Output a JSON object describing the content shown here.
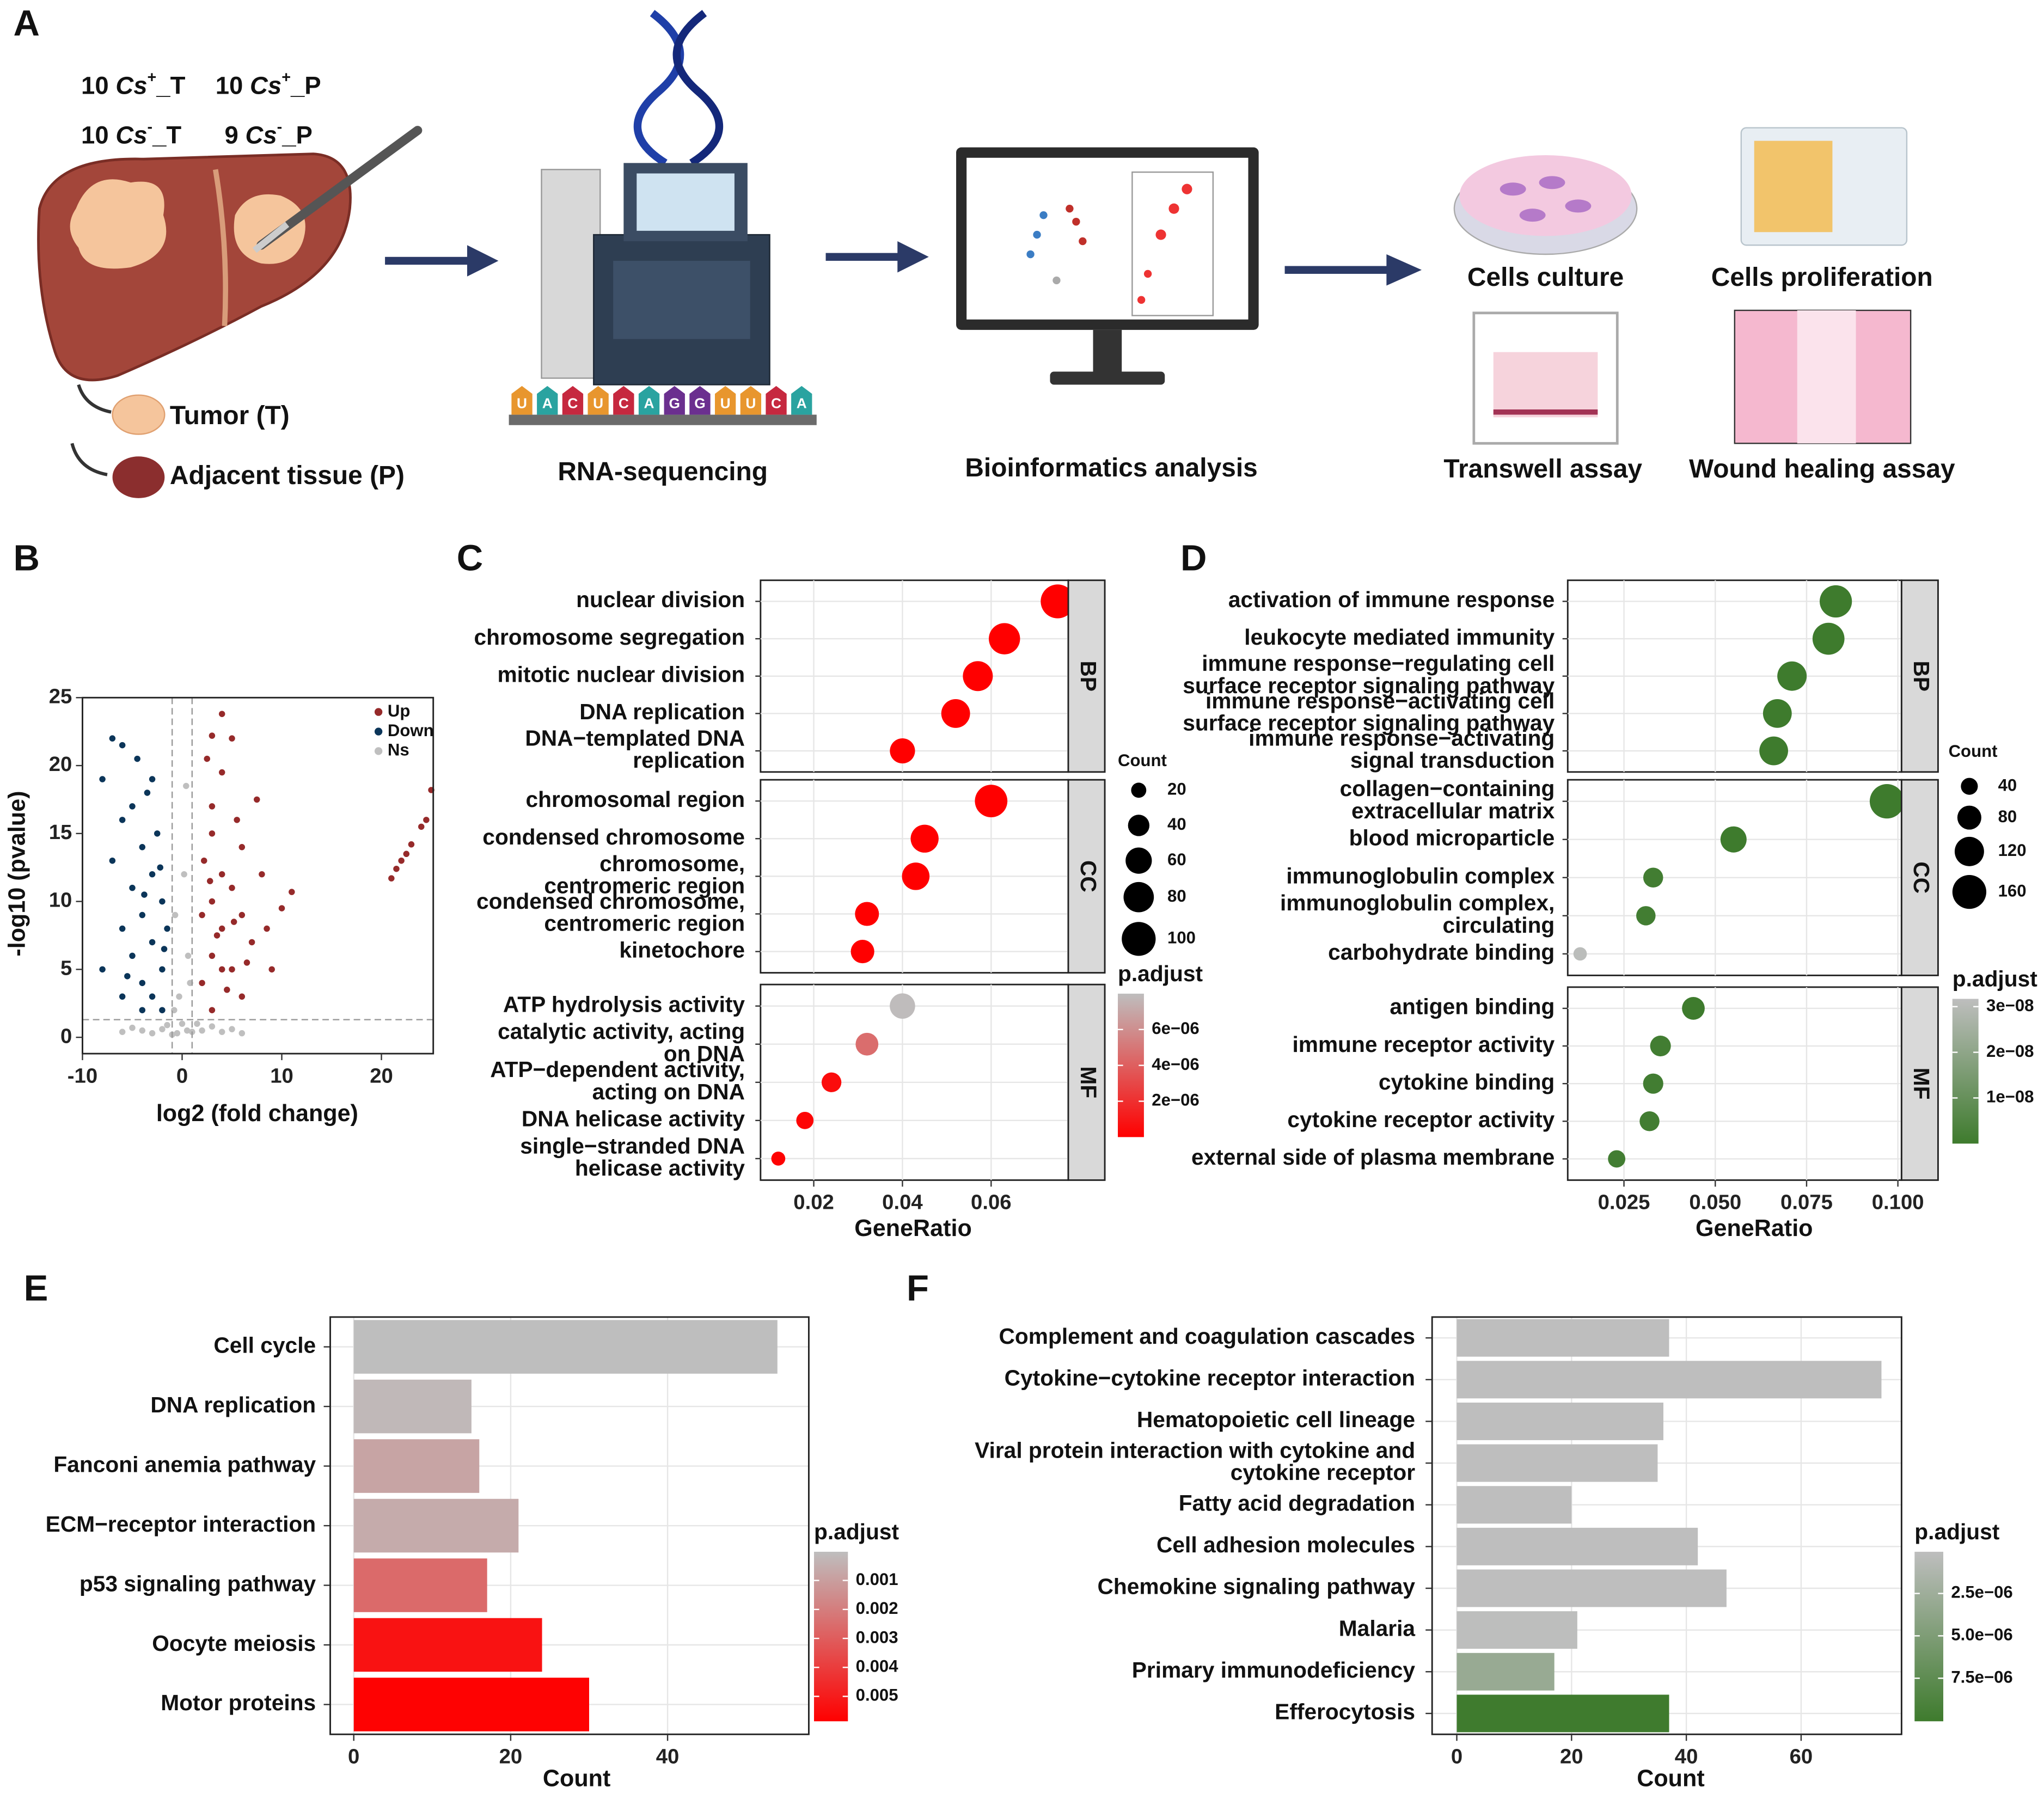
{
  "panel_a": {
    "label": "A",
    "samples": [
      {
        "count": "10",
        "species": "Cs",
        "sign": "+",
        "group": "_T"
      },
      {
        "count": "10",
        "species": "Cs",
        "sign": "+",
        "group": "_P"
      },
      {
        "count": "10",
        "species": "Cs",
        "sign": "-",
        "group": "_T"
      },
      {
        "count": "9",
        "species": "Cs",
        "sign": "-",
        "group": "_P"
      }
    ],
    "tissues": [
      "Tumor (T)",
      "Adjacent tissue (P)"
    ],
    "rna": [
      "U",
      "A",
      "C",
      "U",
      "C",
      "A",
      "G",
      "G",
      "U",
      "U",
      "C",
      "A"
    ],
    "rna_colors": {
      "U": "#e8962e",
      "A": "#2aa3a0",
      "C": "#c6283f",
      "G": "#6b2f8f"
    },
    "steps": [
      "RNA-sequencing",
      "Bioinformatics analysis"
    ],
    "assays": [
      "Cells culture",
      "Cells proliferation",
      "Transwell assay",
      "Wound healing assay"
    ]
  },
  "chart_data": [
    {
      "type": "volcano",
      "panel": "B",
      "x_label": "log2 (fold change)",
      "y_label": "-log10 (pvalue)",
      "xlim": [
        -10,
        25.2
      ],
      "ylim": [
        -1.2,
        25
      ],
      "xticks": [
        -10,
        0,
        10,
        20
      ],
      "yticks": [
        0,
        5,
        10,
        15,
        20,
        25
      ],
      "thresholds": {
        "x": [
          -1,
          1
        ],
        "y": 1.3
      },
      "series": [
        {
          "name": "Up",
          "color": "#962a2a",
          "x": [
            4,
            3,
            5,
            2.5,
            4,
            7.5,
            3,
            5.5,
            3,
            6,
            8,
            11,
            10,
            8.5,
            9,
            4,
            5,
            3,
            6,
            4,
            7,
            3,
            5,
            2,
            6,
            3,
            2,
            4,
            21,
            22,
            23,
            24,
            24.5,
            25,
            21.5,
            22.5,
            2.2,
            3.5,
            4.5,
            6.5,
            2.8,
            5.2
          ],
          "y": [
            23.8,
            22.2,
            22,
            20.5,
            19.5,
            17.5,
            17,
            16,
            15,
            14,
            12,
            10.7,
            9.5,
            8,
            5,
            12,
            11,
            10,
            9,
            8,
            7,
            6,
            5,
            4,
            3,
            2,
            9,
            5,
            11.7,
            13,
            14.2,
            15.5,
            16,
            18.2,
            12.4,
            13.5,
            13,
            7.5,
            3.5,
            5.5,
            11.5,
            8.5
          ]
        },
        {
          "name": "Down",
          "color": "#0b3559",
          "x": [
            -7,
            -6,
            -8,
            -4.5,
            -3,
            -5,
            -3.5,
            -6,
            -2.5,
            -4,
            -7,
            -3,
            -5,
            -2,
            -4,
            -6,
            -3,
            -5,
            -2,
            -4,
            -3,
            -6,
            -2,
            -8,
            -4,
            -1.5,
            -2.2,
            -3.8,
            -5.5,
            -1.8
          ],
          "y": [
            22,
            21.5,
            19,
            20.5,
            19,
            17,
            18,
            16,
            15,
            14,
            13,
            12,
            11,
            10,
            9,
            8,
            7,
            6,
            5,
            4,
            3,
            3,
            2,
            5,
            2,
            8,
            12.5,
            10.5,
            4.5,
            6.5
          ]
        },
        {
          "name": "Ns",
          "color": "#bfbfbf",
          "x": [
            -0.5,
            0.5,
            0,
            -1,
            1,
            -0.3,
            0.6,
            -0.7,
            0.2,
            2,
            -2,
            3,
            -3,
            0.4,
            -4,
            4,
            -5,
            5,
            1.5,
            -1.5,
            0.8,
            -0.8,
            6,
            -6
          ],
          "y": [
            0.3,
            0.5,
            1,
            0.2,
            0.4,
            3,
            6,
            9,
            12,
            0.5,
            0.6,
            0.8,
            0.3,
            18.5,
            0.5,
            0.4,
            0.7,
            0.6,
            1,
            0.9,
            4,
            2,
            0.3,
            0.4
          ]
        }
      ]
    },
    {
      "type": "dotplot",
      "panel": "C",
      "x_label": "GeneRatio",
      "size_title": "Count",
      "color_title": "p.adjust",
      "xlim": [
        0.008,
        0.0774
      ],
      "xticks": [
        0.02,
        0.04,
        0.06
      ],
      "size_ticks": [
        20,
        40,
        60,
        80,
        100
      ],
      "color_lim": [
        0,
        8e-06
      ],
      "colors": [
        "#ff0000",
        "#bebebe"
      ],
      "color_ticks": [
        {
          "value": 2e-06,
          "label": "2e−06"
        },
        {
          "value": 4e-06,
          "label": "4e−06"
        },
        {
          "value": 6e-06,
          "label": "6e−06"
        }
      ],
      "facets": [
        {
          "label": "BP",
          "terms": [
            [
              "nuclear division"
            ],
            [
              "chromosome segregation"
            ],
            [
              "mitotic nuclear division"
            ],
            [
              "DNA replication"
            ],
            [
              "DNA−templated DNA",
              "replication"
            ]
          ],
          "values": [
            0.075,
            0.063,
            0.057,
            0.052,
            0.04
          ],
          "counts": [
            100,
            85,
            78,
            72,
            55
          ],
          "padjust": [
            1e-15,
            1e-14,
            1e-12,
            1e-12,
            1e-10
          ]
        },
        {
          "label": "CC",
          "terms": [
            [
              "chromosomal region"
            ],
            [
              "condensed chromosome"
            ],
            [
              "chromosome,",
              "centromeric region"
            ],
            [
              "condensed chromosome,",
              "centromeric region"
            ],
            [
              "kinetochore"
            ]
          ],
          "values": [
            0.06,
            0.045,
            0.043,
            0.032,
            0.031
          ],
          "counts": [
            92,
            68,
            66,
            50,
            48
          ],
          "padjust": [
            1e-13,
            1e-10,
            1e-10,
            1e-09,
            1e-09
          ]
        },
        {
          "label": "MF",
          "terms": [
            [
              "ATP hydrolysis activity"
            ],
            [
              "catalytic activity, acting",
              "on DNA"
            ],
            [
              "ATP−dependent activity,",
              "acting on DNA"
            ],
            [
              "DNA helicase activity"
            ],
            [
              "single−stranded DNA",
              "helicase activity"
            ]
          ],
          "values": [
            0.04,
            0.032,
            0.024,
            0.018,
            0.012
          ],
          "counts": [
            56,
            45,
            34,
            26,
            17
          ],
          "padjust": [
            7.9e-06,
            4.6e-06,
            5e-07,
            2e-07,
            1e-07
          ]
        }
      ]
    },
    {
      "type": "dotplot",
      "panel": "D",
      "x_label": "GeneRatio",
      "size_title": "Count",
      "color_title": "p.adjust",
      "xlim": [
        0.0096,
        0.101
      ],
      "xticks": [
        0.025,
        {
          "value": 0.05,
          "label": "0.050"
        },
        0.075,
        {
          "value": 0.1,
          "label": "0.100"
        }
      ],
      "size_ticks": [
        40,
        80,
        120,
        160
      ],
      "color_lim": [
        0,
        3.17e-08
      ],
      "colors": [
        "#3e7b2d",
        "#bebebe"
      ],
      "color_ticks": [
        {
          "value": 1e-08,
          "label": "1e−08"
        },
        {
          "value": 2e-08,
          "label": "2e−08"
        },
        {
          "value": 3e-08,
          "label": "3e−08"
        }
      ],
      "facets": [
        {
          "label": "BP",
          "terms": [
            [
              "activation of immune response"
            ],
            [
              "leukocyte mediated immunity"
            ],
            [
              "immune response−regulating cell",
              "surface receptor signaling pathway"
            ],
            [
              "immune response−activating cell",
              "surface receptor signaling pathway"
            ],
            [
              "immune response−activating",
              "signal transduction"
            ]
          ],
          "values": [
            0.083,
            0.081,
            0.071,
            0.067,
            0.066
          ],
          "counts": [
            145,
            142,
            120,
            115,
            115
          ],
          "padjust": [
            1e-12,
            1e-12,
            1e-11,
            1e-11,
            1e-11
          ]
        },
        {
          "label": "CC",
          "terms": [
            [
              "collagen−containing",
              "extracellular matrix"
            ],
            [
              "blood microparticle"
            ],
            [
              "immunoglobulin complex"
            ],
            [
              "immunoglobulin complex,",
              "circulating"
            ],
            [
              "carbohydrate binding"
            ]
          ],
          "values": [
            0.097,
            0.055,
            0.033,
            0.031,
            0.013
          ],
          "counts": [
            165,
            95,
            55,
            52,
            25
          ],
          "padjust": [
            1e-12,
            1e-10,
            1e-09,
            1e-09,
            3.1e-08
          ]
        },
        {
          "label": "MF",
          "terms": [
            [
              "antigen binding"
            ],
            [
              "immune receptor activity"
            ],
            [
              "cytokine binding"
            ],
            [
              "cytokine receptor activity"
            ],
            [
              "external side of plasma membrane"
            ]
          ],
          "values": [
            0.044,
            0.035,
            0.033,
            0.032,
            0.023
          ],
          "counts": [
            72,
            60,
            57,
            55,
            42
          ],
          "padjust": [
            1e-10,
            1e-09,
            1e-09,
            1e-09,
            1e-09
          ]
        }
      ]
    },
    {
      "type": "hbar",
      "panel": "E",
      "x_label": "Count",
      "color_title": "p.adjust",
      "xlim": [
        -3,
        58
      ],
      "xticks": [
        0,
        20,
        40
      ],
      "categories": [
        "Cell cycle",
        "DNA replication",
        "Fanconi anemia pathway",
        "ECM−receptor interaction",
        "p53 signaling pathway",
        "Oocyte meiosis",
        "Motor proteins"
      ],
      "values": [
        54,
        15,
        16,
        21,
        17,
        24,
        30
      ],
      "padjust": [
        1e-05,
        0.0002,
        0.0008,
        0.0006,
        0.0026,
        0.0053,
        0.0058
      ],
      "color_lim": [
        1e-05,
        0.00586
      ],
      "colors": [
        "#bebebe",
        "#ff0000"
      ],
      "color_ticks": [
        0.001,
        0.002,
        0.003,
        0.004,
        0.005
      ]
    },
    {
      "type": "hbar",
      "panel": "F",
      "x_label": "Count",
      "color_title": "p.adjust",
      "xlim": [
        -4.3,
        77.5
      ],
      "xticks": [
        0,
        20,
        40,
        60
      ],
      "categories": [
        [
          "Complement and coagulation cascades"
        ],
        [
          "Cytokine−cytokine receptor interaction"
        ],
        [
          "Hematopoietic cell lineage"
        ],
        [
          "Viral protein interaction with cytokine and",
          "cytokine receptor"
        ],
        [
          "Fatty acid degradation"
        ],
        [
          "Cell adhesion molecules"
        ],
        [
          "Chemokine signaling pathway"
        ],
        [
          "Malaria"
        ],
        [
          "Primary immunodeficiency"
        ],
        [
          "Efferocytosis"
        ]
      ],
      "values": [
        37,
        74,
        36,
        35,
        20,
        42,
        47,
        21,
        17,
        37
      ],
      "padjust": [
        5e-08,
        5e-08,
        5e-08,
        5e-08,
        5e-08,
        5e-08,
        6e-08,
        1e-07,
        3e-06,
        1e-05
      ],
      "color_lim": [
        4e-08,
        1.004e-05
      ],
      "colors": [
        "#bebebe",
        "#3e7b2d"
      ],
      "color_ticks": [
        {
          "value": 2.5e-06,
          "label": "2.5e−06"
        },
        {
          "value": 5e-06,
          "label": "5.0e−06"
        },
        {
          "value": 7.5e-06,
          "label": "7.5e−06"
        }
      ]
    }
  ]
}
